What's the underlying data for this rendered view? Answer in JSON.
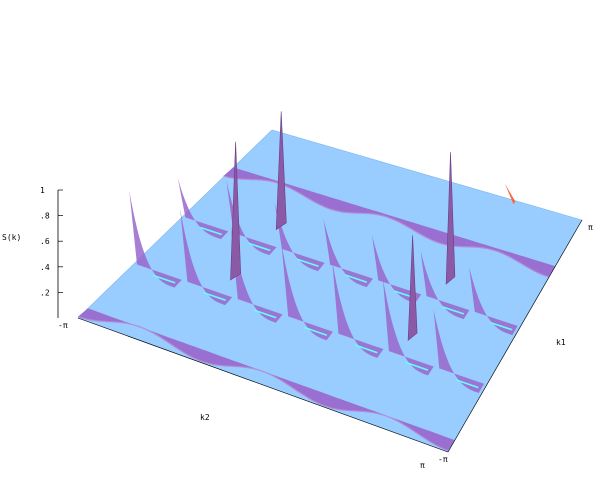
{
  "chart_data": {
    "type": "surface3d",
    "zlabel": "S(k)",
    "xlabel": "k1",
    "ylabel": "k2",
    "x_range_label": [
      "-π",
      "π"
    ],
    "y_range_label": [
      "-π",
      "π"
    ],
    "zlim": [
      0,
      1
    ],
    "z_ticks": [
      ".2",
      ".4",
      ".6",
      ".8",
      "1"
    ],
    "colors": {
      "plane": "#99ccff",
      "ridge": "#9966cc",
      "ridge_light": "#b28fd6",
      "peak": "#8a5aa6",
      "highlight": "#66ffff",
      "edge": "#ff6633"
    },
    "ridges": [
      {
        "k1": -3.14,
        "type": "sinusoidal_ridge",
        "height": 0.1
      },
      {
        "k1": -1.57,
        "type": "cusp_row",
        "cusp_heights": [
          0.6,
          0.6,
          0.6,
          0.6,
          0.6,
          0.6,
          0.5
        ]
      },
      {
        "k1": 0.0,
        "type": "cusp_row",
        "cusp_heights": [
          0.35,
          0.45,
          0.4,
          0.4,
          0.4,
          0.4,
          0.4
        ]
      },
      {
        "k1": 1.57,
        "type": "sinusoidal_ridge",
        "height": 0.08
      }
    ],
    "peaks": [
      {
        "k1": -0.8,
        "k2": -1.6,
        "S": 1.0
      },
      {
        "k1": -0.8,
        "k2": 1.6,
        "S": 0.75
      },
      {
        "k1": 0.8,
        "k2": -1.6,
        "S": 0.85
      },
      {
        "k1": 0.8,
        "k2": 1.6,
        "S": 0.95
      }
    ]
  }
}
